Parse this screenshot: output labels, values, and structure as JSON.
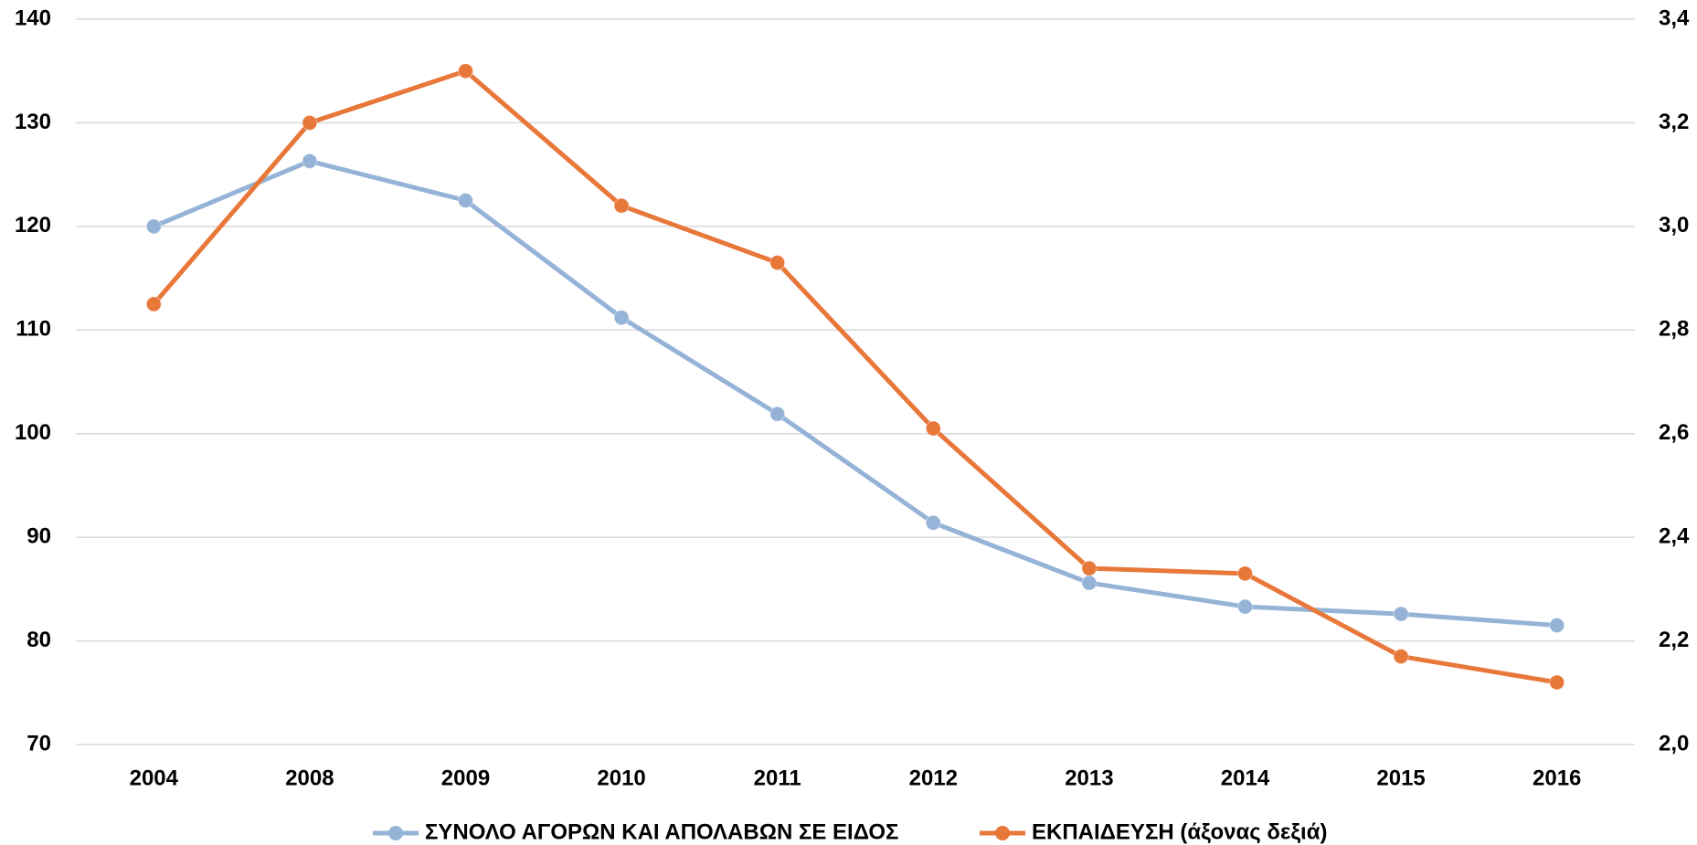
{
  "chart_data": {
    "type": "line",
    "categories": [
      "2004",
      "2008",
      "2009",
      "2010",
      "2011",
      "2012",
      "2013",
      "2014",
      "2015",
      "2016"
    ],
    "series": [
      {
        "name": "ΣΥΝΟΛΟ ΑΓΟΡΩΝ ΚΑΙ ΑΠΟΛΑΒΩΝ ΣΕ ΕΙΔΟΣ",
        "color": "#95b3d7",
        "values": [
          120,
          126.3,
          122.5,
          111.2,
          101.9,
          91.4,
          85.6,
          83.3,
          82.6,
          81.5
        ]
      },
      {
        "name": "ΕΚΠΑΙΔΕΥΣΗ (άξονας δεξιά)",
        "color": "#e8773a",
        "axis": "y2",
        "values": [
          2.85,
          3.2,
          3.3,
          3.04,
          2.93,
          2.61,
          2.34,
          2.33,
          2.17,
          2.12
        ]
      }
    ],
    "ylim": [
      70,
      140
    ],
    "yticks": [
      70,
      80,
      90,
      100,
      110,
      120,
      130,
      140
    ],
    "y2lim": [
      2.0,
      3.4
    ],
    "y2ticks": [
      {
        "value": 2.0,
        "label": "2,0"
      },
      {
        "value": 2.2,
        "label": "2,2"
      },
      {
        "value": 2.4,
        "label": "2,4"
      },
      {
        "value": 2.6,
        "label": "2,6"
      },
      {
        "value": 2.8,
        "label": "2,8"
      },
      {
        "value": 3.0,
        "label": "3,0"
      },
      {
        "value": 3.2,
        "label": "3,2"
      },
      {
        "value": 3.4,
        "label": "3,4"
      }
    ],
    "grid": true,
    "legend": "bottom"
  }
}
